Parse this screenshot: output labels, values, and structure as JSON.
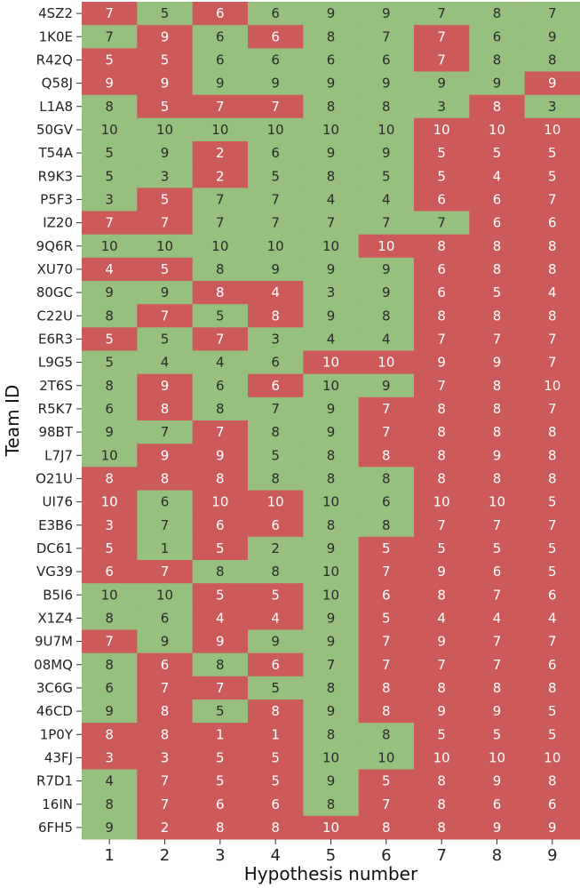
{
  "chart_data": {
    "type": "heatmap",
    "title": "",
    "xlabel": "Hypothesis number",
    "ylabel": "Team ID",
    "x": [
      "1",
      "2",
      "3",
      "4",
      "5",
      "6",
      "7",
      "8",
      "9"
    ],
    "rows": [
      {
        "id": "4SZ2",
        "values": [
          7,
          5,
          6,
          6,
          9,
          9,
          7,
          8,
          7
        ],
        "status": [
          "r",
          "g",
          "r",
          "g",
          "g",
          "g",
          "g",
          "g",
          "g"
        ]
      },
      {
        "id": "1K0E",
        "values": [
          7,
          9,
          6,
          6,
          8,
          7,
          7,
          6,
          9
        ],
        "status": [
          "g",
          "r",
          "g",
          "r",
          "g",
          "g",
          "r",
          "g",
          "g"
        ]
      },
      {
        "id": "R42Q",
        "values": [
          5,
          5,
          6,
          6,
          6,
          6,
          7,
          8,
          8
        ],
        "status": [
          "r",
          "r",
          "g",
          "g",
          "g",
          "g",
          "r",
          "g",
          "g"
        ]
      },
      {
        "id": "Q58J",
        "values": [
          9,
          9,
          9,
          9,
          9,
          9,
          9,
          9,
          9
        ],
        "status": [
          "r",
          "r",
          "g",
          "g",
          "g",
          "g",
          "g",
          "g",
          "r"
        ]
      },
      {
        "id": "L1A8",
        "values": [
          8,
          5,
          7,
          7,
          8,
          8,
          3,
          8,
          3
        ],
        "status": [
          "g",
          "r",
          "r",
          "r",
          "g",
          "g",
          "g",
          "r",
          "g"
        ]
      },
      {
        "id": "50GV",
        "values": [
          10,
          10,
          10,
          10,
          10,
          10,
          10,
          10,
          10
        ],
        "status": [
          "g",
          "g",
          "g",
          "g",
          "g",
          "g",
          "r",
          "r",
          "r"
        ]
      },
      {
        "id": "T54A",
        "values": [
          5,
          9,
          2,
          6,
          9,
          9,
          5,
          5,
          5
        ],
        "status": [
          "g",
          "g",
          "r",
          "g",
          "g",
          "g",
          "r",
          "r",
          "r"
        ]
      },
      {
        "id": "R9K3",
        "values": [
          5,
          3,
          2,
          5,
          8,
          5,
          5,
          4,
          5
        ],
        "status": [
          "g",
          "g",
          "r",
          "g",
          "g",
          "g",
          "r",
          "r",
          "r"
        ]
      },
      {
        "id": "P5F3",
        "values": [
          3,
          5,
          7,
          7,
          4,
          4,
          6,
          6,
          7
        ],
        "status": [
          "g",
          "r",
          "g",
          "g",
          "g",
          "g",
          "r",
          "r",
          "r"
        ]
      },
      {
        "id": "IZ20",
        "values": [
          7,
          7,
          7,
          7,
          7,
          7,
          7,
          6,
          6
        ],
        "status": [
          "r",
          "r",
          "g",
          "g",
          "g",
          "g",
          "g",
          "r",
          "r"
        ]
      },
      {
        "id": "9Q6R",
        "values": [
          10,
          10,
          10,
          10,
          10,
          10,
          8,
          8,
          8
        ],
        "status": [
          "g",
          "g",
          "g",
          "g",
          "g",
          "r",
          "r",
          "r",
          "r"
        ]
      },
      {
        "id": "XU70",
        "values": [
          4,
          5,
          8,
          9,
          9,
          9,
          6,
          8,
          8
        ],
        "status": [
          "r",
          "r",
          "g",
          "g",
          "g",
          "g",
          "r",
          "r",
          "r"
        ]
      },
      {
        "id": "80GC",
        "values": [
          9,
          9,
          8,
          4,
          3,
          9,
          6,
          5,
          4
        ],
        "status": [
          "g",
          "g",
          "r",
          "r",
          "g",
          "g",
          "r",
          "r",
          "r"
        ]
      },
      {
        "id": "C22U",
        "values": [
          8,
          7,
          5,
          8,
          9,
          8,
          8,
          8,
          8
        ],
        "status": [
          "g",
          "r",
          "g",
          "r",
          "g",
          "g",
          "r",
          "r",
          "r"
        ]
      },
      {
        "id": "E6R3",
        "values": [
          5,
          5,
          7,
          3,
          4,
          4,
          7,
          7,
          7
        ],
        "status": [
          "r",
          "g",
          "r",
          "g",
          "g",
          "g",
          "r",
          "r",
          "r"
        ]
      },
      {
        "id": "L9G5",
        "values": [
          5,
          4,
          4,
          6,
          10,
          10,
          9,
          9,
          7
        ],
        "status": [
          "g",
          "g",
          "g",
          "g",
          "r",
          "r",
          "r",
          "r",
          "r"
        ]
      },
      {
        "id": "2T6S",
        "values": [
          8,
          9,
          6,
          6,
          10,
          9,
          7,
          8,
          10
        ],
        "status": [
          "g",
          "r",
          "g",
          "r",
          "g",
          "g",
          "r",
          "r",
          "r"
        ]
      },
      {
        "id": "R5K7",
        "values": [
          6,
          8,
          8,
          7,
          9,
          7,
          8,
          8,
          7
        ],
        "status": [
          "g",
          "r",
          "g",
          "g",
          "g",
          "r",
          "r",
          "r",
          "r"
        ]
      },
      {
        "id": "98BT",
        "values": [
          9,
          7,
          7,
          8,
          9,
          7,
          8,
          8,
          8
        ],
        "status": [
          "g",
          "g",
          "r",
          "g",
          "g",
          "r",
          "r",
          "r",
          "r"
        ]
      },
      {
        "id": "L7J7",
        "values": [
          10,
          9,
          9,
          5,
          8,
          8,
          8,
          9,
          8
        ],
        "status": [
          "g",
          "r",
          "r",
          "g",
          "g",
          "r",
          "r",
          "r",
          "r"
        ]
      },
      {
        "id": "O21U",
        "values": [
          8,
          8,
          8,
          8,
          8,
          8,
          8,
          8,
          8
        ],
        "status": [
          "r",
          "r",
          "r",
          "g",
          "g",
          "g",
          "r",
          "r",
          "r"
        ]
      },
      {
        "id": "UI76",
        "values": [
          10,
          6,
          10,
          10,
          10,
          6,
          10,
          10,
          5
        ],
        "status": [
          "r",
          "g",
          "r",
          "r",
          "g",
          "g",
          "r",
          "r",
          "r"
        ]
      },
      {
        "id": "E3B6",
        "values": [
          3,
          7,
          6,
          6,
          8,
          8,
          7,
          7,
          7
        ],
        "status": [
          "r",
          "g",
          "r",
          "r",
          "g",
          "g",
          "r",
          "r",
          "r"
        ]
      },
      {
        "id": "DC61",
        "values": [
          5,
          1,
          5,
          2,
          9,
          5,
          5,
          5,
          5
        ],
        "status": [
          "r",
          "g",
          "r",
          "g",
          "g",
          "r",
          "r",
          "r",
          "r"
        ]
      },
      {
        "id": "VG39",
        "values": [
          6,
          7,
          8,
          8,
          10,
          7,
          9,
          6,
          5
        ],
        "status": [
          "r",
          "r",
          "g",
          "g",
          "g",
          "r",
          "r",
          "r",
          "r"
        ]
      },
      {
        "id": "B5I6",
        "values": [
          10,
          10,
          5,
          5,
          10,
          6,
          8,
          7,
          6
        ],
        "status": [
          "g",
          "g",
          "r",
          "r",
          "g",
          "r",
          "r",
          "r",
          "r"
        ]
      },
      {
        "id": "X1Z4",
        "values": [
          8,
          6,
          4,
          4,
          9,
          5,
          4,
          4,
          4
        ],
        "status": [
          "g",
          "g",
          "r",
          "r",
          "g",
          "r",
          "r",
          "r",
          "r"
        ]
      },
      {
        "id": "9U7M",
        "values": [
          7,
          9,
          9,
          9,
          9,
          7,
          9,
          7,
          7
        ],
        "status": [
          "r",
          "g",
          "r",
          "g",
          "g",
          "r",
          "r",
          "r",
          "r"
        ]
      },
      {
        "id": "08MQ",
        "values": [
          8,
          6,
          8,
          6,
          7,
          7,
          7,
          7,
          6
        ],
        "status": [
          "g",
          "r",
          "g",
          "r",
          "g",
          "r",
          "r",
          "r",
          "r"
        ]
      },
      {
        "id": "3C6G",
        "values": [
          6,
          7,
          7,
          5,
          8,
          8,
          8,
          8,
          8
        ],
        "status": [
          "g",
          "r",
          "r",
          "g",
          "g",
          "r",
          "r",
          "r",
          "r"
        ]
      },
      {
        "id": "46CD",
        "values": [
          9,
          8,
          5,
          8,
          9,
          8,
          9,
          9,
          5
        ],
        "status": [
          "g",
          "r",
          "g",
          "r",
          "g",
          "r",
          "r",
          "r",
          "r"
        ]
      },
      {
        "id": "1P0Y",
        "values": [
          8,
          8,
          1,
          1,
          8,
          8,
          5,
          5,
          5
        ],
        "status": [
          "r",
          "r",
          "r",
          "r",
          "g",
          "g",
          "r",
          "r",
          "r"
        ]
      },
      {
        "id": "43FJ",
        "values": [
          3,
          3,
          5,
          5,
          10,
          10,
          10,
          10,
          10
        ],
        "status": [
          "r",
          "r",
          "r",
          "r",
          "g",
          "g",
          "r",
          "r",
          "r"
        ]
      },
      {
        "id": "R7D1",
        "values": [
          4,
          7,
          5,
          5,
          9,
          5,
          8,
          9,
          8
        ],
        "status": [
          "g",
          "r",
          "r",
          "r",
          "g",
          "r",
          "r",
          "r",
          "r"
        ]
      },
      {
        "id": "16IN",
        "values": [
          8,
          7,
          6,
          6,
          8,
          7,
          8,
          6,
          6
        ],
        "status": [
          "g",
          "r",
          "r",
          "r",
          "g",
          "r",
          "r",
          "r",
          "r"
        ]
      },
      {
        "id": "6FH5",
        "values": [
          9,
          2,
          8,
          8,
          10,
          8,
          8,
          9,
          9
        ],
        "status": [
          "g",
          "r",
          "r",
          "r",
          "r",
          "r",
          "r",
          "r",
          "r"
        ]
      }
    ],
    "colors": {
      "g": "#97bf7e",
      "r": "#cd5a5a",
      "text_on_g": "#2b2b2b",
      "text_on_r": "#ffffff"
    },
    "legend": "none",
    "grid": false
  }
}
